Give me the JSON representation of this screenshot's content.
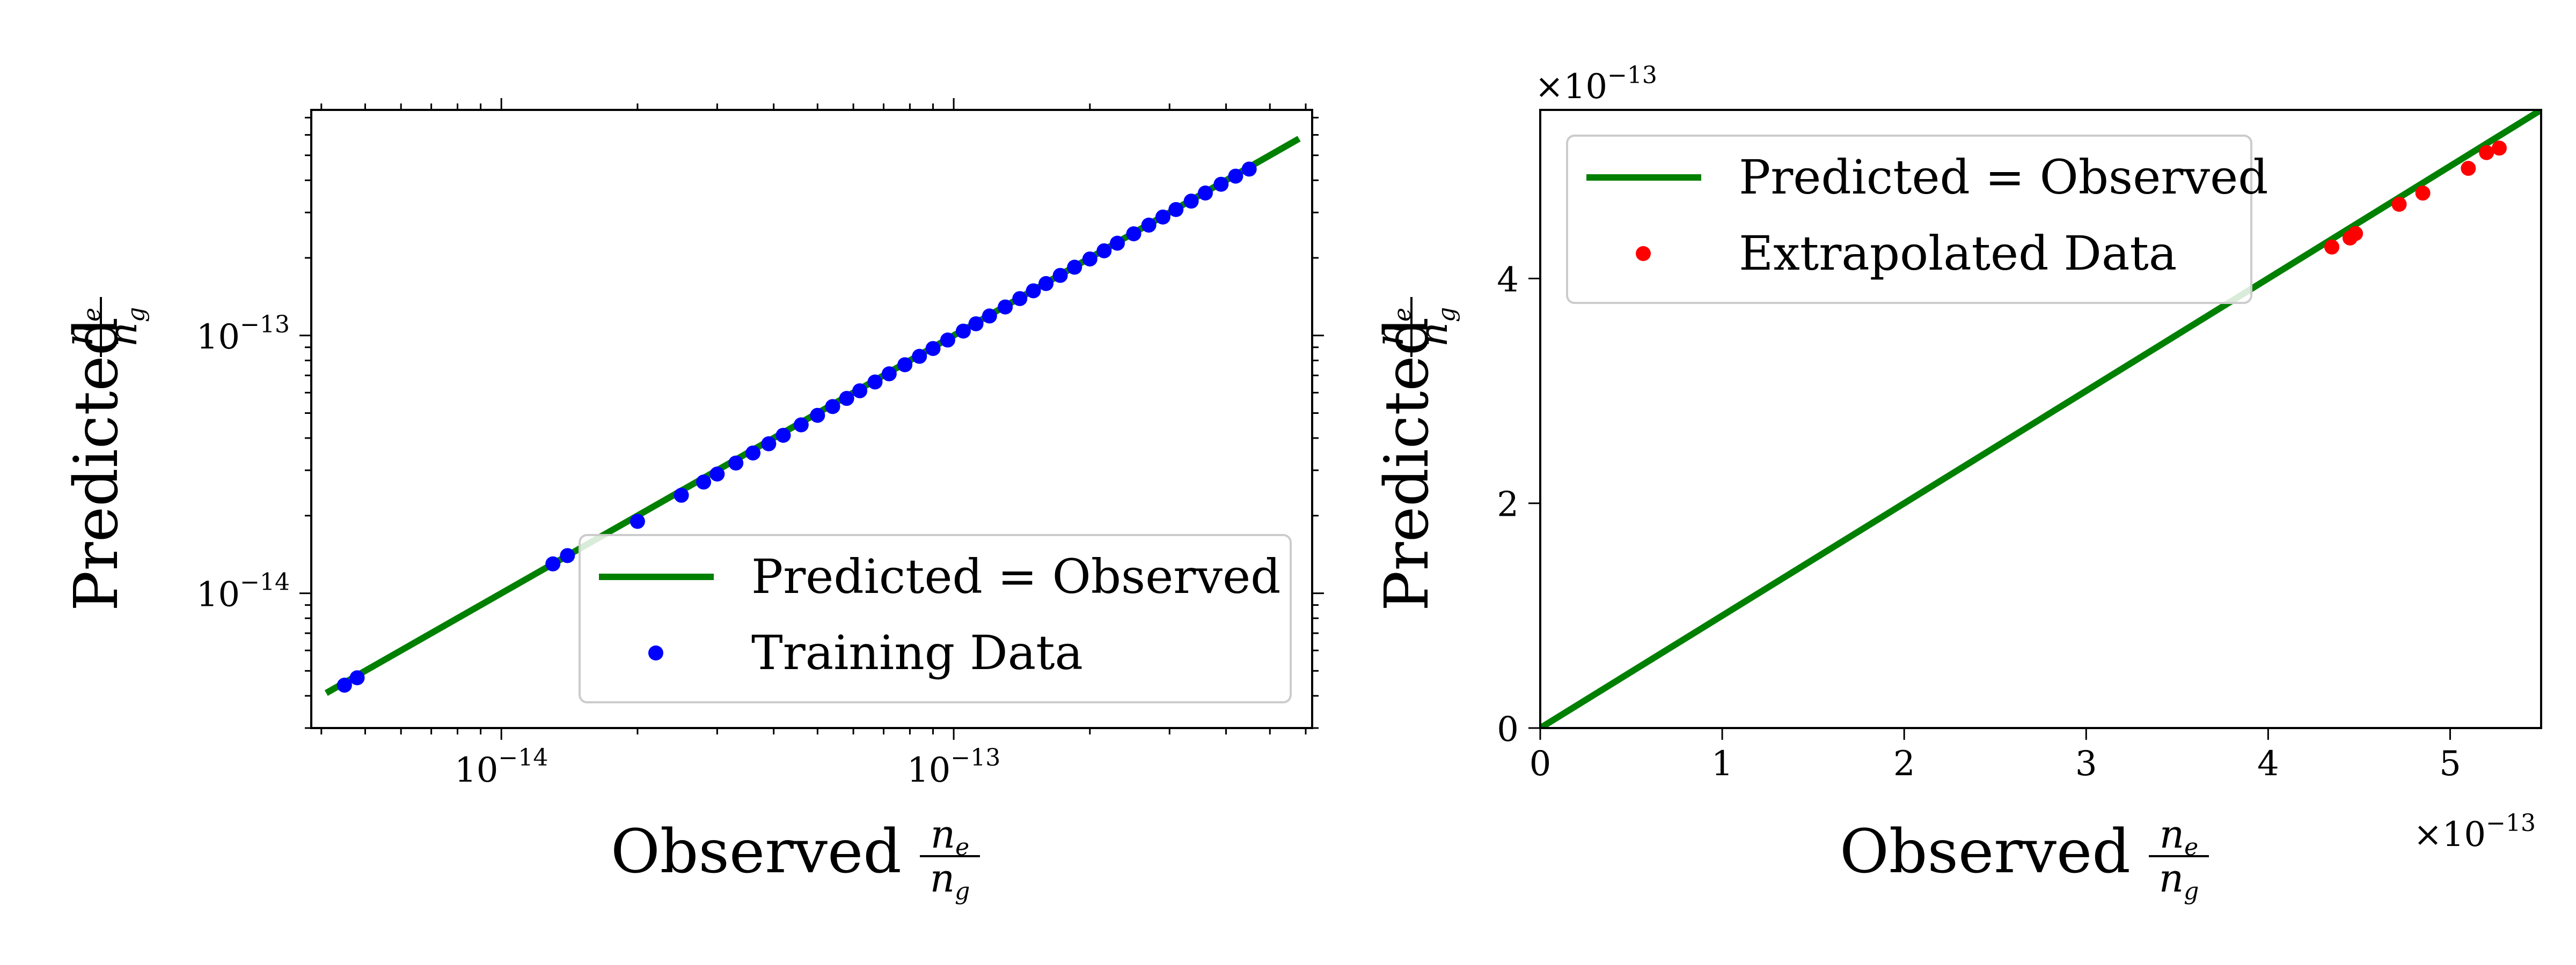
{
  "chart_data": [
    {
      "type": "scatter",
      "xscale": "log",
      "yscale": "log",
      "xlim": [
        3.8e-15,
        6.2e-13
      ],
      "ylim": [
        3e-15,
        7.5e-13
      ],
      "xlabel": "Observed",
      "ylabel": "Predicted",
      "ratio_numerator": "n",
      "numerator_sub": "e",
      "ratio_denominator": "n",
      "denominator_sub": "g",
      "xticks": [
        {
          "value": 1e-14,
          "base": "10",
          "exp": "−14"
        },
        {
          "value": 1e-13,
          "base": "10",
          "exp": "−13"
        }
      ],
      "yticks": [
        {
          "value": 1e-14,
          "base": "10",
          "exp": "−14"
        },
        {
          "value": 1e-13,
          "base": "10",
          "exp": "−13"
        }
      ],
      "legend_position": "lower-right",
      "series": [
        {
          "name": "Predicted = Observed",
          "kind": "line",
          "color": "#008000",
          "x": [
            4.1e-15,
            5.8e-13
          ],
          "y": [
            4.1e-15,
            5.8e-13
          ]
        },
        {
          "name": "Training Data",
          "kind": "points",
          "color": "#0000ff",
          "x": [
            4.5e-15,
            4.8e-15,
            1.3e-14,
            1.4e-14,
            2e-14,
            2.5e-14,
            2.8e-14,
            3e-14,
            3.3e-14,
            3.6e-14,
            3.9e-14,
            4.2e-14,
            4.6e-14,
            5e-14,
            5.4e-14,
            5.8e-14,
            6.2e-14,
            6.7e-14,
            7.2e-14,
            7.8e-14,
            8.4e-14,
            9e-14,
            9.7e-14,
            1.05e-13,
            1.12e-13,
            1.2e-13,
            1.3e-13,
            1.4e-13,
            1.5e-13,
            1.6e-13,
            1.72e-13,
            1.85e-13,
            2e-13,
            2.15e-13,
            2.3e-13,
            2.5e-13,
            2.7e-13,
            2.9e-13,
            3.1e-13,
            3.35e-13,
            3.6e-13,
            3.9e-13,
            4.2e-13,
            4.5e-13
          ],
          "y": [
            4.4e-15,
            4.7e-15,
            1.3e-14,
            1.4e-14,
            1.9e-14,
            2.4e-14,
            2.7e-14,
            2.9e-14,
            3.2e-14,
            3.5e-14,
            3.8e-14,
            4.1e-14,
            4.5e-14,
            4.9e-14,
            5.3e-14,
            5.7e-14,
            6.1e-14,
            6.6e-14,
            7.1e-14,
            7.7e-14,
            8.3e-14,
            8.9e-14,
            9.6e-14,
            1.04e-13,
            1.11e-13,
            1.19e-13,
            1.29e-13,
            1.39e-13,
            1.49e-13,
            1.59e-13,
            1.71e-13,
            1.84e-13,
            1.98e-13,
            2.13e-13,
            2.28e-13,
            2.48e-13,
            2.68e-13,
            2.88e-13,
            3.08e-13,
            3.32e-13,
            3.57e-13,
            3.86e-13,
            4.15e-13,
            4.42e-13
          ]
        }
      ]
    },
    {
      "type": "scatter",
      "xscale": "linear",
      "yscale": "linear",
      "xlim": [
        0,
        5.5e-13
      ],
      "ylim": [
        0,
        5.5e-13
      ],
      "xlabel": "Observed",
      "ylabel": "Predicted",
      "ratio_numerator": "n",
      "numerator_sub": "e",
      "ratio_denominator": "n",
      "denominator_sub": "g",
      "xticks": [
        {
          "value": 0,
          "label": "0"
        },
        {
          "value": 1e-13,
          "label": "1"
        },
        {
          "value": 2e-13,
          "label": "2"
        },
        {
          "value": 3e-13,
          "label": "3"
        },
        {
          "value": 4e-13,
          "label": "4"
        },
        {
          "value": 5e-13,
          "label": "5"
        }
      ],
      "yticks": [
        {
          "value": 0,
          "label": "0"
        },
        {
          "value": 2e-13,
          "label": "2"
        },
        {
          "value": 4e-13,
          "label": "4"
        }
      ],
      "offset_label_x": {
        "prefix": "×10",
        "exp": "−13"
      },
      "offset_label_y": {
        "prefix": "×10",
        "exp": "−13"
      },
      "legend_position": "upper-left",
      "series": [
        {
          "name": "Predicted = Observed",
          "kind": "line",
          "color": "#008000",
          "x": [
            0,
            5.5e-13
          ],
          "y": [
            0,
            5.5e-13
          ]
        },
        {
          "name": "Extrapolated Data",
          "kind": "points",
          "color": "#ff0000",
          "x": [
            4.35e-13,
            4.45e-13,
            4.48e-13,
            4.72e-13,
            4.85e-13,
            5.1e-13,
            5.2e-13,
            5.27e-13
          ],
          "y": [
            4.28e-13,
            4.36e-13,
            4.4e-13,
            4.66e-13,
            4.76e-13,
            4.98e-13,
            5.12e-13,
            5.16e-13
          ]
        }
      ]
    }
  ]
}
